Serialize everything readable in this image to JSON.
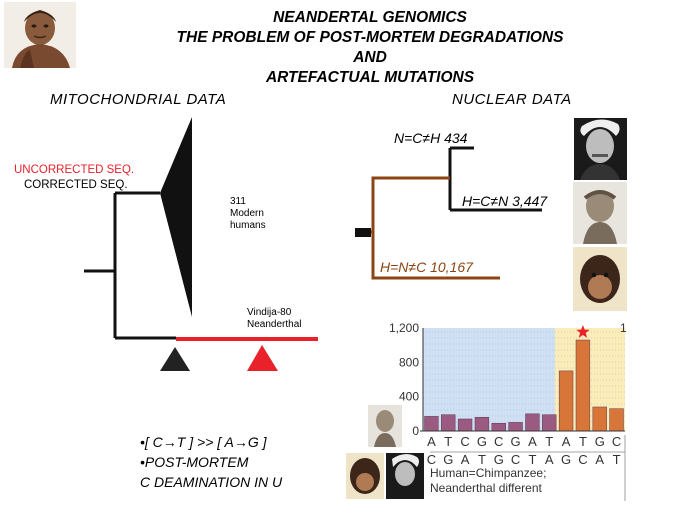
{
  "title": {
    "line1": "NEANDERTAL GENOMICS",
    "line2": "THE PROBLEM OF POST-MORTEM DEGRADATIONS AND",
    "line3": "ARTEFACTUAL MUTATIONS"
  },
  "mito": {
    "heading": "MITOCHONDRIAL DATA",
    "uncorrected": "UNCORRECTED SEQ.",
    "corrected": "CORRECTED SEQ.",
    "modern_count": "311",
    "modern_l1": "Modern",
    "modern_l2": "humans",
    "vindija_l1": "Vindija-80",
    "vindija_l2": "Neanderthal",
    "colors": {
      "uncorrected": "#e8212b",
      "tree": "#111111"
    }
  },
  "nuclear": {
    "heading": "NUCLEAR DATA",
    "label_top": "N=C≠H 434",
    "label_mid": "H=C≠N 3,447",
    "label_bot": "H=N≠C 10,167",
    "colors": {
      "brown": "#8b4513"
    }
  },
  "notes": {
    "line1": "•[ C→T ] >> [ A→G ]",
    "line2": "•POST-MORTEM",
    "line3": "C DEAMINATION IN U"
  },
  "chart_data": {
    "type": "bar",
    "categories": [
      "A",
      "T",
      "C",
      "G",
      "C",
      "G",
      "A",
      "T",
      "A",
      "T",
      "G",
      "C"
    ],
    "values": [
      170,
      190,
      140,
      160,
      90,
      100,
      200,
      190,
      700,
      1060,
      280,
      260
    ],
    "ylim": [
      0,
      1200
    ],
    "yticks": [
      0,
      400,
      800,
      "1,200"
    ],
    "bottom_row": [
      "C",
      "G",
      "A",
      "T",
      "G",
      "C",
      "T",
      "A",
      "G",
      "C",
      "A",
      "T"
    ],
    "annotation_line1": "Human=Chimpanzee;",
    "annotation_line2": "Neanderthal different",
    "star_index": 9,
    "corner_label": "1",
    "colors": {
      "left_bar": "#9b5a82",
      "right_bar": "#d8763a",
      "left_bg": "#cfe0f5",
      "right_bg": "#fbecb8",
      "star": "#e8212b"
    }
  }
}
